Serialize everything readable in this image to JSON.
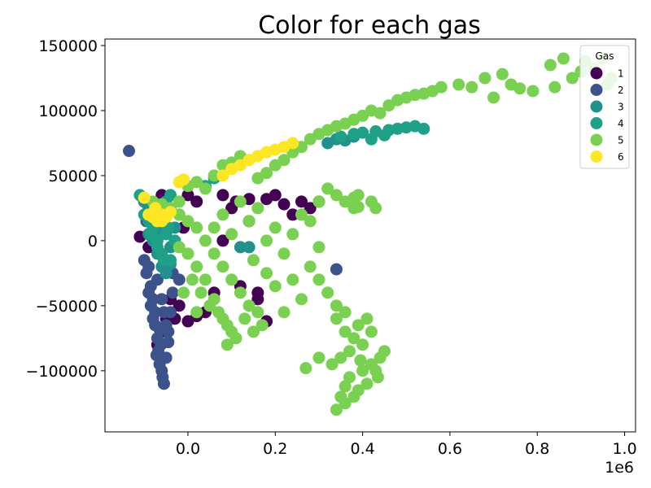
{
  "chart_data": {
    "type": "scatter",
    "title": "Color for each gas",
    "xlabel": "",
    "ylabel": "",
    "x_offset_label": "1e6",
    "xlim": [
      -190000,
      1025000
    ],
    "ylim": [
      -147000,
      155000
    ],
    "x_ticks": [
      0,
      200000,
      400000,
      600000,
      800000,
      1000000
    ],
    "x_tick_labels": [
      "0.0",
      "0.2",
      "0.4",
      "0.6",
      "0.8",
      "1.0"
    ],
    "y_ticks": [
      -100000,
      -50000,
      0,
      50000,
      100000,
      150000
    ],
    "y_tick_labels": [
      "−100000",
      "−50000",
      "0",
      "50000",
      "100000",
      "150000"
    ],
    "grid": false,
    "legend": {
      "title": "Gas",
      "placement": "top-right"
    },
    "series": [
      {
        "name": "1",
        "color": "#440154",
        "points": [
          [
            -110000,
            3000
          ],
          [
            -100000,
            30000
          ],
          [
            -90000,
            -5000
          ],
          [
            -80000,
            20000
          ],
          [
            -60000,
            35000
          ],
          [
            -40000,
            -45000
          ],
          [
            -30000,
            -60000
          ],
          [
            -20000,
            -50000
          ],
          [
            -10000,
            10000
          ],
          [
            0,
            35000
          ],
          [
            20000,
            30000
          ],
          [
            40000,
            -55000
          ],
          [
            60000,
            -40000
          ],
          [
            80000,
            35000
          ],
          [
            100000,
            25000
          ],
          [
            120000,
            -35000
          ],
          [
            140000,
            15000
          ],
          [
            160000,
            -45000
          ],
          [
            180000,
            -62000
          ],
          [
            200000,
            35000
          ],
          [
            220000,
            28000
          ],
          [
            240000,
            20000
          ],
          [
            260000,
            30000
          ],
          [
            280000,
            25000
          ],
          [
            300000,
            30000
          ],
          [
            -70000,
            -80000
          ],
          [
            -50000,
            -60000
          ],
          [
            -60000,
            -70000
          ],
          [
            0,
            -62000
          ],
          [
            160000,
            -40000
          ],
          [
            20000,
            -58000
          ],
          [
            140000,
            32000
          ],
          [
            110000,
            30000
          ],
          [
            180000,
            32000
          ],
          [
            80000,
            0
          ]
        ]
      },
      {
        "name": "2",
        "color": "#3b528b",
        "points": [
          [
            -135000,
            69000
          ],
          [
            -100000,
            -15000
          ],
          [
            -95000,
            -25000
          ],
          [
            -90000,
            -40000
          ],
          [
            -85000,
            -50000
          ],
          [
            -80000,
            -60000
          ],
          [
            -75000,
            -65000
          ],
          [
            -70000,
            -75000
          ],
          [
            -68000,
            -85000
          ],
          [
            -65000,
            -95000
          ],
          [
            -60000,
            -100000
          ],
          [
            -58000,
            -105000
          ],
          [
            -55000,
            -110000
          ],
          [
            -50000,
            -90000
          ],
          [
            -45000,
            -70000
          ],
          [
            -40000,
            -55000
          ],
          [
            -35000,
            -40000
          ],
          [
            -85000,
            -35000
          ],
          [
            -90000,
            -20000
          ],
          [
            -70000,
            -30000
          ],
          [
            -60000,
            -45000
          ],
          [
            -55000,
            -55000
          ],
          [
            -50000,
            -65000
          ],
          [
            -45000,
            -78000
          ],
          [
            -75000,
            -55000
          ],
          [
            -65000,
            -68000
          ],
          [
            -95000,
            15000
          ],
          [
            -100000,
            30000
          ],
          [
            -80000,
            -45000
          ],
          [
            -72000,
            -88000
          ],
          [
            -62000,
            -80000
          ],
          [
            -58000,
            -20000
          ],
          [
            -35000,
            -25000
          ],
          [
            340000,
            -22000
          ],
          [
            -20000,
            -30000
          ]
        ]
      },
      {
        "name": "3",
        "color": "#21918c",
        "points": [
          [
            -100000,
            30000
          ],
          [
            -90000,
            5000
          ],
          [
            -80000,
            0
          ],
          [
            -70000,
            -10000
          ],
          [
            -60000,
            -20000
          ],
          [
            -50000,
            -25000
          ],
          [
            -40000,
            -5000
          ],
          [
            -30000,
            10000
          ],
          [
            -60000,
            10000
          ],
          [
            -80000,
            20000
          ],
          [
            120000,
            -5000
          ],
          [
            140000,
            -5000
          ],
          [
            -90000,
            25000
          ],
          [
            -40000,
            -18000
          ],
          [
            -70000,
            5000
          ],
          [
            320000,
            75000
          ],
          [
            340000,
            78000
          ],
          [
            360000,
            77000
          ],
          [
            380000,
            80000
          ]
        ]
      },
      {
        "name": "4",
        "color": "#1fa187",
        "points": [
          [
            -110000,
            35000
          ],
          [
            -100000,
            20000
          ],
          [
            -90000,
            15000
          ],
          [
            -80000,
            10000
          ],
          [
            -70000,
            0
          ],
          [
            -60000,
            -10000
          ],
          [
            -50000,
            5000
          ],
          [
            -40000,
            -15000
          ],
          [
            -30000,
            0
          ],
          [
            -20000,
            20000
          ],
          [
            -60000,
            25000
          ],
          [
            -50000,
            30000
          ],
          [
            -40000,
            35000
          ],
          [
            40000,
            42000
          ],
          [
            60000,
            48000
          ],
          [
            350000,
            80000
          ],
          [
            380000,
            82000
          ],
          [
            400000,
            83000
          ],
          [
            430000,
            84000
          ],
          [
            460000,
            85000
          ],
          [
            480000,
            86000
          ],
          [
            500000,
            87000
          ],
          [
            520000,
            88000
          ],
          [
            540000,
            86000
          ],
          [
            420000,
            78000
          ],
          [
            450000,
            81000
          ],
          [
            -70000,
            -5000
          ],
          [
            -55000,
            -15000
          ],
          [
            -45000,
            10000
          ],
          [
            -85000,
            5000
          ]
        ]
      },
      {
        "name": "5",
        "color": "#7ad151",
        "points": [
          [
            -100000,
            33000
          ],
          [
            -80000,
            30000
          ],
          [
            -60000,
            28000
          ],
          [
            -40000,
            25000
          ],
          [
            -20000,
            20000
          ],
          [
            0,
            15000
          ],
          [
            20000,
            10000
          ],
          [
            40000,
            0
          ],
          [
            60000,
            -10000
          ],
          [
            80000,
            -20000
          ],
          [
            100000,
            -30000
          ],
          [
            120000,
            -40000
          ],
          [
            140000,
            -50000
          ],
          [
            160000,
            -55000
          ],
          [
            100000,
            -70000
          ],
          [
            90000,
            -80000
          ],
          [
            80000,
            -60000
          ],
          [
            60000,
            -45000
          ],
          [
            40000,
            -30000
          ],
          [
            20000,
            -20000
          ],
          [
            0,
            -10000
          ],
          [
            -20000,
            -5000
          ],
          [
            60000,
            10000
          ],
          [
            80000,
            20000
          ],
          [
            100000,
            5000
          ],
          [
            120000,
            30000
          ],
          [
            140000,
            15000
          ],
          [
            160000,
            25000
          ],
          [
            180000,
            0
          ],
          [
            200000,
            10000
          ],
          [
            220000,
            -10000
          ],
          [
            240000,
            5000
          ],
          [
            260000,
            20000
          ],
          [
            280000,
            -20000
          ],
          [
            300000,
            -30000
          ],
          [
            320000,
            -40000
          ],
          [
            340000,
            -50000
          ],
          [
            260000,
            -45000
          ],
          [
            240000,
            -30000
          ],
          [
            220000,
            -55000
          ],
          [
            300000,
            30000
          ],
          [
            320000,
            40000
          ],
          [
            340000,
            35000
          ],
          [
            360000,
            30000
          ],
          [
            380000,
            25000
          ],
          [
            280000,
            15000
          ],
          [
            300000,
            -5000
          ],
          [
            340000,
            -60000
          ],
          [
            360000,
            -70000
          ],
          [
            380000,
            -75000
          ],
          [
            370000,
            -85000
          ],
          [
            350000,
            -90000
          ],
          [
            330000,
            -95000
          ],
          [
            400000,
            -80000
          ],
          [
            420000,
            -70000
          ],
          [
            410000,
            -60000
          ],
          [
            360000,
            -55000
          ],
          [
            390000,
            -65000
          ],
          [
            400000,
            -100000
          ],
          [
            410000,
            -110000
          ],
          [
            390000,
            -115000
          ],
          [
            380000,
            -120000
          ],
          [
            360000,
            -125000
          ],
          [
            340000,
            -130000
          ],
          [
            350000,
            -120000
          ],
          [
            420000,
            -95000
          ],
          [
            430000,
            -100000
          ],
          [
            440000,
            -90000
          ],
          [
            450000,
            -85000
          ],
          [
            435000,
            -105000
          ],
          [
            370000,
            -105000
          ],
          [
            360000,
            -112000
          ],
          [
            395000,
            -92000
          ],
          [
            270000,
            -98000
          ],
          [
            300000,
            -90000
          ],
          [
            160000,
            48000
          ],
          [
            180000,
            52000
          ],
          [
            200000,
            58000
          ],
          [
            220000,
            62000
          ],
          [
            240000,
            68000
          ],
          [
            260000,
            72000
          ],
          [
            280000,
            78000
          ],
          [
            300000,
            82000
          ],
          [
            320000,
            85000
          ],
          [
            340000,
            88000
          ],
          [
            360000,
            90000
          ],
          [
            380000,
            93000
          ],
          [
            400000,
            96000
          ],
          [
            420000,
            100000
          ],
          [
            440000,
            98000
          ],
          [
            460000,
            104000
          ],
          [
            480000,
            108000
          ],
          [
            500000,
            110000
          ],
          [
            520000,
            112000
          ],
          [
            540000,
            113000
          ],
          [
            560000,
            115000
          ],
          [
            580000,
            118000
          ],
          [
            620000,
            120000
          ],
          [
            650000,
            118000
          ],
          [
            680000,
            125000
          ],
          [
            700000,
            110000
          ],
          [
            720000,
            128000
          ],
          [
            740000,
            120000
          ],
          [
            760000,
            117000
          ],
          [
            790000,
            115000
          ],
          [
            830000,
            135000
          ],
          [
            860000,
            140000
          ],
          [
            880000,
            125000
          ],
          [
            900000,
            130000
          ],
          [
            910000,
            138000
          ],
          [
            930000,
            132000
          ],
          [
            950000,
            140000
          ],
          [
            960000,
            120000
          ],
          [
            970000,
            125000
          ],
          [
            840000,
            118000
          ],
          [
            120000,
            65000
          ],
          [
            140000,
            62000
          ],
          [
            100000,
            60000
          ],
          [
            80000,
            58000
          ],
          [
            20000,
            45000
          ],
          [
            40000,
            40000
          ],
          [
            0,
            42000
          ],
          [
            60000,
            50000
          ],
          [
            -20000,
            30000
          ],
          [
            380000,
            33000
          ],
          [
            390000,
            26000
          ],
          [
            390000,
            35000
          ],
          [
            420000,
            30000
          ],
          [
            430000,
            25000
          ],
          [
            200000,
            -35000
          ],
          [
            180000,
            -25000
          ],
          [
            150000,
            -15000
          ],
          [
            10000,
            -30000
          ],
          [
            30000,
            -40000
          ],
          [
            50000,
            -50000
          ],
          [
            70000,
            -55000
          ],
          [
            90000,
            -65000
          ],
          [
            110000,
            -75000
          ],
          [
            130000,
            -60000
          ],
          [
            150000,
            -70000
          ],
          [
            170000,
            -65000
          ],
          [
            20000,
            -55000
          ],
          [
            -10000,
            -40000
          ]
        ]
      },
      {
        "name": "6",
        "color": "#fde725",
        "points": [
          [
            -100000,
            33000
          ],
          [
            -90000,
            20000
          ],
          [
            -80000,
            18000
          ],
          [
            -70000,
            15000
          ],
          [
            -60000,
            20000
          ],
          [
            -50000,
            18000
          ],
          [
            -40000,
            22000
          ],
          [
            -20000,
            45000
          ],
          [
            -10000,
            47000
          ],
          [
            140000,
            62000
          ],
          [
            160000,
            65000
          ],
          [
            180000,
            68000
          ],
          [
            200000,
            70000
          ],
          [
            220000,
            72000
          ],
          [
            240000,
            75000
          ],
          [
            120000,
            58000
          ],
          [
            100000,
            55000
          ],
          [
            80000,
            50000
          ],
          [
            -60000,
            15000
          ],
          [
            -75000,
            25000
          ]
        ]
      }
    ]
  }
}
